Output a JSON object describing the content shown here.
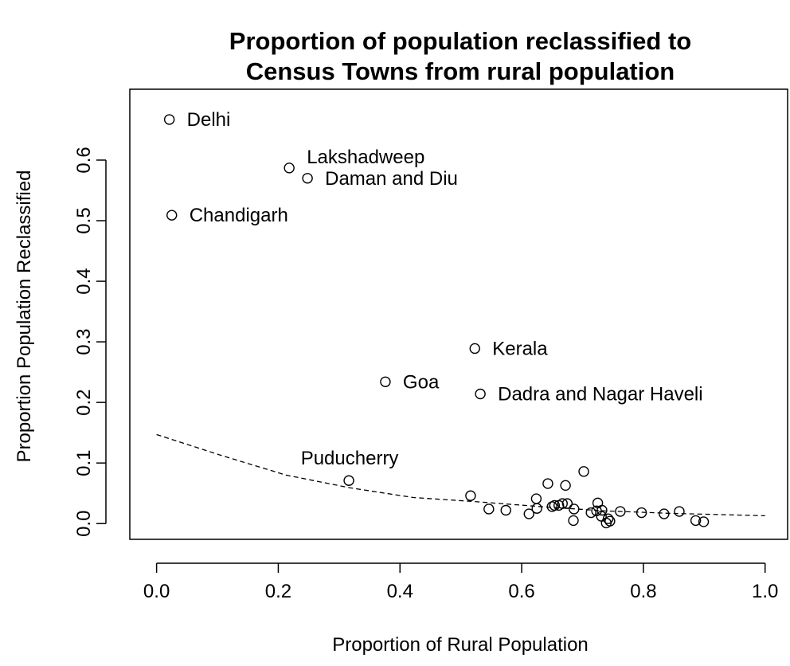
{
  "chart_data": {
    "type": "scatter",
    "title": [
      "Proportion of population reclassified to",
      "Census Towns from rural population"
    ],
    "x_label": "Proportion of Rural Population",
    "y_label": "Proportion Population Reclassified",
    "x": [
      0.021,
      0.218,
      0.248,
      0.025,
      0.523,
      0.376,
      0.532,
      0.316,
      0.516,
      0.546,
      0.574,
      0.612,
      0.624,
      0.625,
      0.65,
      0.667,
      0.643,
      0.654,
      0.661,
      0.672,
      0.675,
      0.685,
      0.686,
      0.702,
      0.714,
      0.723,
      0.725,
      0.731,
      0.732,
      0.739,
      0.742,
      0.745,
      0.762,
      0.797,
      0.834,
      0.859,
      0.886,
      0.899
    ],
    "y": [
      0.667,
      0.587,
      0.57,
      0.509,
      0.289,
      0.234,
      0.214,
      0.071,
      0.046,
      0.024,
      0.022,
      0.016,
      0.041,
      0.025,
      0.028,
      0.033,
      0.066,
      0.03,
      0.03,
      0.063,
      0.033,
      0.005,
      0.024,
      0.086,
      0.018,
      0.021,
      0.034,
      0.012,
      0.022,
      0.001,
      0.008,
      0.004,
      0.02,
      0.018,
      0.016,
      0.02,
      0.005,
      0.003
    ],
    "point_labels": [
      "Delhi",
      "Lakshadweep",
      "Daman and Diu",
      "Chandigarh",
      "Kerala",
      "Goa",
      "Dadra and Nagar Haveli",
      "Puducherry",
      null,
      null,
      null,
      null,
      null,
      null,
      null,
      null,
      null,
      null,
      null,
      null,
      null,
      null,
      null,
      null,
      null,
      null,
      null,
      null,
      null,
      null,
      null,
      null,
      null,
      null,
      null,
      null,
      null,
      null
    ],
    "trend": {
      "x": [
        0,
        0.108,
        0.213,
        0.318,
        0.422,
        0.527,
        0.631,
        0.736,
        0.841,
        1.0
      ],
      "y": [
        0.147,
        0.112,
        0.08,
        0.059,
        0.043,
        0.036,
        0.028,
        0.021,
        0.017,
        0.013
      ]
    },
    "color": "#000000",
    "xlim": [
      -0.044,
      1.037
    ],
    "ylim": [
      -0.026,
      0.717
    ],
    "xticks": [
      {
        "value": 0,
        "label": "0.0"
      },
      0.2,
      0.4,
      0.6,
      0.8,
      {
        "value": 1,
        "label": "1.0"
      }
    ],
    "yticks": [
      {
        "value": 0,
        "label": "0.0"
      },
      0.1,
      0.2,
      0.3,
      0.4,
      0.5,
      0.6
    ]
  }
}
